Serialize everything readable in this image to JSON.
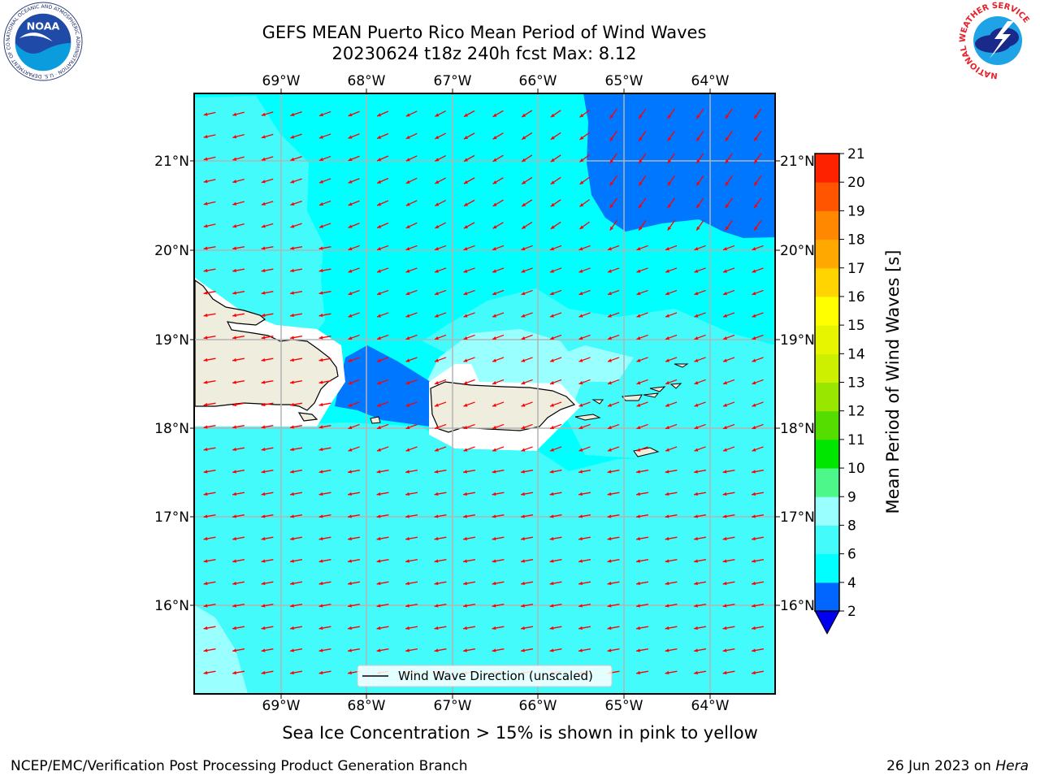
{
  "header": {
    "title_line1": "GEFS MEAN Puerto Rico Mean Period of Wind Waves",
    "title_line2": "20230624 t18z 240h fcst   Max: 8.12"
  },
  "logos": {
    "left": {
      "name": "noaa-logo",
      "text": "NOAA",
      "ring_text": "NATIONAL OCEANIC AND ATMOSPHERIC ADMINISTRATION · U.S. DEPARTMENT OF COMMERCE"
    },
    "right": {
      "name": "nws-logo",
      "ring_text": "NATIONAL WEATHER SERVICE"
    }
  },
  "chart_data": {
    "type": "heatmap",
    "variable": "Mean Period of Wind Waves",
    "units": "s",
    "max_value": 8.12,
    "lon_ticks": [
      "69°W",
      "68°W",
      "67°W",
      "66°W",
      "65°W",
      "64°W"
    ],
    "lat_ticks": [
      "21°N",
      "20°N",
      "19°N",
      "18°N",
      "17°N",
      "16°N"
    ],
    "lon_range": [
      -70.0,
      -63.3
    ],
    "lat_range": [
      15.0,
      21.75
    ],
    "colorbar": {
      "label": "Mean Period of Wind Waves [s]",
      "levels": [
        2,
        4,
        6,
        8,
        9,
        10,
        11,
        12,
        13,
        14,
        15,
        16,
        17,
        18,
        19,
        20,
        21
      ],
      "colors": [
        "#0066ff",
        "#00ffff",
        "#44fbfb",
        "#99ffff",
        "#4df78a",
        "#00e600",
        "#55dd00",
        "#99e600",
        "#ccf000",
        "#e8f500",
        "#ffff00",
        "#ffd400",
        "#ffa800",
        "#ff8800",
        "#ff5500",
        "#ff2200",
        "#ff0000"
      ],
      "under_color": "#0000ee"
    },
    "legend": {
      "label": "Wind Wave Direction (unscaled)",
      "placement": "bottom-center"
    },
    "grid": true,
    "vector_color": "#ff0000",
    "land_color": "#efedde"
  },
  "caption": "Sea Ice Concentration > 15% is shown in pink to yellow",
  "footer": {
    "left": "NCEP/EMC/Verification Post Processing Product Generation Branch",
    "right_prefix": "26 Jun 2023 on",
    "right_host": "Hera"
  }
}
